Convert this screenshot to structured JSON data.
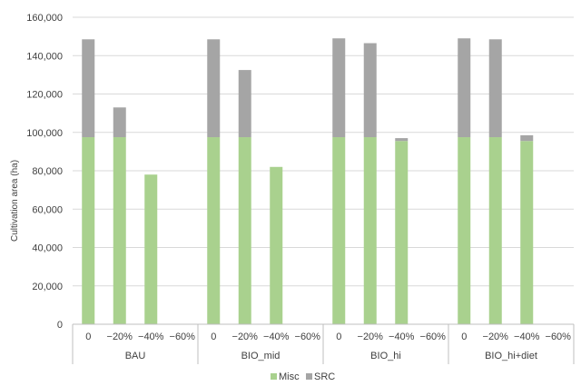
{
  "chart_data": {
    "type": "bar",
    "stacked": true,
    "ylabel": "Cultivation area (ha)",
    "ylim": [
      0,
      160000
    ],
    "y_ticks": [
      0,
      20000,
      40000,
      60000,
      80000,
      100000,
      120000,
      140000,
      160000
    ],
    "y_tick_labels": [
      "0",
      "20,000",
      "40,000",
      "60,000",
      "80,000",
      "100,000",
      "120,000",
      "140,000",
      "160,000"
    ],
    "grid": true,
    "legend_position": "bottom",
    "groups": [
      {
        "name": "BAU",
        "categories": [
          "0",
          "−20%",
          "−40%",
          "−60%"
        ]
      },
      {
        "name": "BIO_mid",
        "categories": [
          "0",
          "−20%",
          "−40%",
          "−60%"
        ]
      },
      {
        "name": "BIO_hi",
        "categories": [
          "0",
          "−20%",
          "−40%",
          "−60%"
        ]
      },
      {
        "name": "BIO_hi+diet",
        "categories": [
          "0",
          "−20%",
          "−40%",
          "−60%"
        ]
      }
    ],
    "series": [
      {
        "name": "Misc",
        "color": "#a9d18e",
        "values": [
          97500,
          97500,
          78000,
          0,
          97500,
          97500,
          82000,
          0,
          97500,
          97500,
          95500,
          0,
          97500,
          97500,
          95500,
          0
        ]
      },
      {
        "name": "SRC",
        "color": "#a5a5a5",
        "values": [
          51000,
          15500,
          0,
          0,
          51000,
          35000,
          0,
          0,
          51500,
          49000,
          1500,
          0,
          51500,
          51000,
          3000,
          0
        ]
      }
    ]
  }
}
